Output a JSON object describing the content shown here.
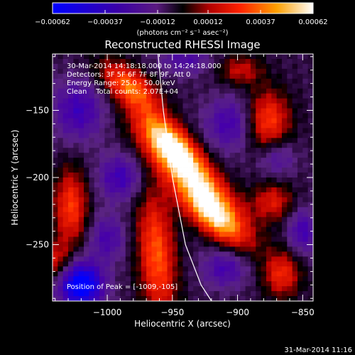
{
  "chart_data": {
    "type": "heatmap",
    "title": "Reconstructed RHESSI Image",
    "xlabel": "Heliocentric X (arcsec)",
    "ylabel": "Heliocentric Y (arcsec)",
    "xlim": [
      -1042,
      -842
    ],
    "ylim": [
      -292,
      -108
    ],
    "x_ticks": [
      {
        "value": -1000,
        "label": "−1000"
      },
      {
        "value": -950,
        "label": "−950"
      },
      {
        "value": -900,
        "label": "−900"
      },
      {
        "value": -850,
        "label": "−850"
      }
    ],
    "y_ticks": [
      {
        "value": -150,
        "label": "−150"
      },
      {
        "value": -200,
        "label": "−200"
      },
      {
        "value": -250,
        "label": "−250"
      }
    ],
    "colorbar": {
      "unit_label": "(photons cm⁻² s⁻¹ asec⁻²)",
      "range": [
        -0.00062,
        0.00062
      ],
      "ticks": [
        {
          "value": -0.00062,
          "label": "−0.00062"
        },
        {
          "value": -0.00037,
          "label": "−0.00037"
        },
        {
          "value": -0.00012,
          "label": "−0.00012"
        },
        {
          "value": 0.00012,
          "label": "0.00012"
        },
        {
          "value": 0.00037,
          "label": "0.00037"
        },
        {
          "value": 0.00062,
          "label": "0.00062"
        }
      ]
    },
    "annotations": [
      "30-Mar-2014 14:18:18.000 to 14:24:18.000",
      "Detectors: 3F 5F 6F 7F 8F 9F, Att 0",
      "Energy Range: 25.0 - 50.0 keV",
      "Clean    Total counts: 2.07E+04"
    ],
    "peak_label": "Position of Peak = [-1009,-105]",
    "limb": [
      [
        -961,
        -108
      ],
      [
        -957,
        -150
      ],
      [
        -950,
        -200
      ],
      [
        -940,
        -250
      ],
      [
        -928,
        -280
      ],
      [
        -920,
        -292
      ]
    ],
    "blobs": [
      {
        "x": -952,
        "y": -172,
        "sx": 22,
        "sy": 9,
        "rot": -42,
        "amp": 0.00055
      },
      {
        "x": -935,
        "y": -200,
        "sx": 32,
        "sy": 10,
        "rot": -40,
        "amp": 0.00058
      },
      {
        "x": -918,
        "y": -230,
        "sx": 22,
        "sy": 9,
        "rot": -38,
        "amp": 0.00056
      },
      {
        "x": -983,
        "y": -132,
        "sx": 18,
        "sy": 9,
        "rot": -35,
        "amp": 0.00048
      },
      {
        "x": -877,
        "y": -158,
        "sx": 12,
        "sy": 16,
        "rot": 0,
        "amp": 0.00042
      },
      {
        "x": -873,
        "y": -218,
        "sx": 11,
        "sy": 10,
        "rot": 0,
        "amp": 0.0003
      },
      {
        "x": -1028,
        "y": -222,
        "sx": 9,
        "sy": 20,
        "rot": 0,
        "amp": 0.0004
      },
      {
        "x": -1040,
        "y": -262,
        "sx": 8,
        "sy": 10,
        "rot": 0,
        "amp": 0.00028
      },
      {
        "x": -962,
        "y": -258,
        "sx": 10,
        "sy": 34,
        "rot": 5,
        "amp": 0.00045
      },
      {
        "x": -866,
        "y": -272,
        "sx": 10,
        "sy": 12,
        "rot": 0,
        "amp": 0.00035
      },
      {
        "x": -898,
        "y": -120,
        "sx": 12,
        "sy": 8,
        "rot": 0,
        "amp": 0.00025
      },
      {
        "x": -1022,
        "y": -150,
        "sx": 14,
        "sy": 16,
        "rot": 0,
        "amp": -0.0003
      },
      {
        "x": -1020,
        "y": -280,
        "sx": 12,
        "sy": 12,
        "rot": 0,
        "amp": -0.00062
      },
      {
        "x": -990,
        "y": -200,
        "sx": 12,
        "sy": 12,
        "rot": 0,
        "amp": -0.0003
      },
      {
        "x": -905,
        "y": -160,
        "sx": 14,
        "sy": 14,
        "rot": 0,
        "amp": -0.00028
      },
      {
        "x": -870,
        "y": -185,
        "sx": 10,
        "sy": 10,
        "rot": 0,
        "amp": -0.00022
      },
      {
        "x": -910,
        "y": -268,
        "sx": 12,
        "sy": 10,
        "rot": 0,
        "amp": -0.00026
      },
      {
        "x": -940,
        "y": -112,
        "sx": 14,
        "sy": 8,
        "rot": 0,
        "amp": -0.00022
      },
      {
        "x": -1000,
        "y": -245,
        "sx": 10,
        "sy": 12,
        "rot": 0,
        "amp": -0.00025
      },
      {
        "x": -850,
        "y": -240,
        "sx": 8,
        "sy": 12,
        "rot": 0,
        "amp": -0.00028
      }
    ],
    "background": -8e-05
  },
  "timestamp": "31-Mar-2014 11:16"
}
